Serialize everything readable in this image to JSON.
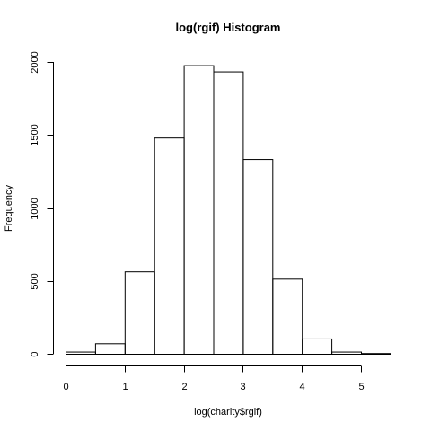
{
  "chart_data": {
    "type": "bar",
    "title": "log(rgif) Histogram",
    "xlabel": "log(charity$rgif)",
    "ylabel": "Frequency",
    "bin_edges": [
      0,
      0.5,
      1,
      1.5,
      2,
      2.5,
      3,
      3.5,
      4,
      4.5,
      5,
      5.5
    ],
    "values": [
      15,
      72,
      565,
      1482,
      1978,
      1935,
      1335,
      515,
      105,
      15,
      5
    ],
    "xlim": [
      0,
      5.5
    ],
    "ylim": [
      0,
      2000
    ],
    "x_ticks": [
      0,
      1,
      2,
      3,
      4,
      5
    ],
    "y_ticks": [
      0,
      500,
      1000,
      1500,
      2000
    ],
    "x_tick_labels": [
      "0",
      "1",
      "2",
      "3",
      "4",
      "5"
    ],
    "y_tick_labels": [
      "0",
      "500",
      "1000",
      "1500",
      "2000"
    ],
    "grid": false,
    "legend": "none"
  }
}
